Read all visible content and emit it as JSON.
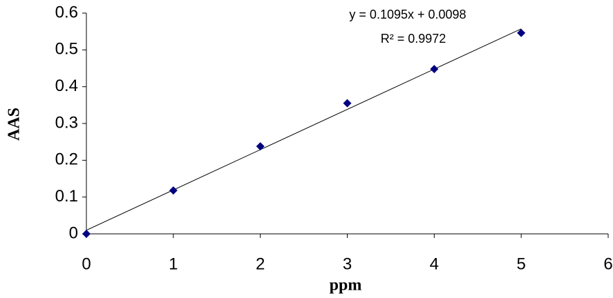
{
  "chart_data": {
    "type": "scatter",
    "x_label": "ppm",
    "y_label": "AAS",
    "x": [
      0,
      1,
      2,
      3,
      4,
      5
    ],
    "values": [
      0,
      0.118,
      0.238,
      0.355,
      0.448,
      0.546
    ],
    "color": "#000080",
    "xlim": [
      0,
      6
    ],
    "xticks": [
      0,
      1,
      2,
      3,
      4,
      5,
      6
    ],
    "ylim": [
      0,
      0.6
    ],
    "yticks": [
      0,
      0.1,
      0.2,
      0.3,
      0.4,
      0.5,
      0.6
    ],
    "trendline": {
      "slope": 0.1095,
      "intercept": 0.0098,
      "equation": "y = 0.1095x + 0.0098",
      "r2": "R² = 0.9972"
    }
  }
}
